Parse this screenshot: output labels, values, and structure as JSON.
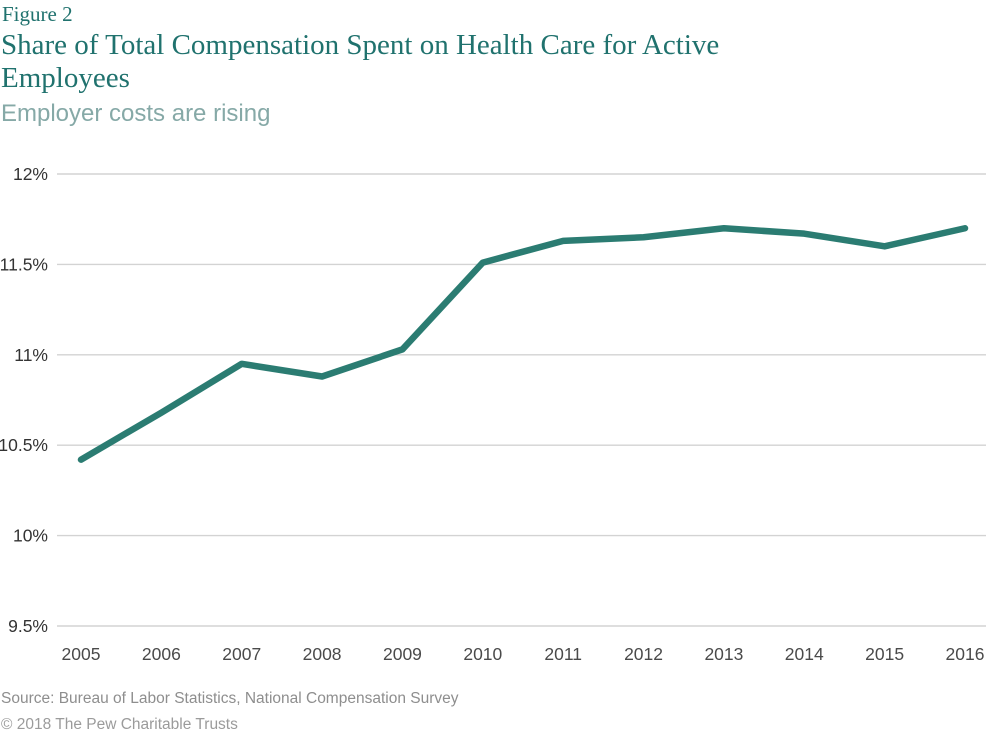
{
  "header": {
    "figure_label": "Figure 2",
    "title": "Share of Total Compensation Spent on Health Care for Active Employees",
    "title_lines": [
      "Share of Total Compensation Spent on Health Care for Active",
      "Employees"
    ],
    "subtitle": "Employer costs are rising"
  },
  "chart_data": {
    "type": "line",
    "title": "Share of Total Compensation Spent on Health Care for Active Employees",
    "subtitle": "Employer costs are rising",
    "categories": [
      "2005",
      "2006",
      "2007",
      "2008",
      "2009",
      "2010",
      "2011",
      "2012",
      "2013",
      "2014",
      "2015",
      "2016"
    ],
    "values": [
      10.42,
      10.68,
      10.95,
      10.88,
      11.03,
      11.51,
      11.63,
      11.65,
      11.7,
      11.67,
      11.6,
      11.7
    ],
    "xlabel": "",
    "ylabel": "",
    "ylim": [
      9.5,
      12
    ],
    "y_ticks": [
      9.5,
      10,
      10.5,
      11,
      11.5,
      12
    ],
    "y_tick_labels": [
      "9.5%",
      "10%",
      "10.5%",
      "11%",
      "11.5%",
      "12%"
    ],
    "grid": true,
    "legend": false,
    "line_color": "#2b7c72",
    "grid_color": "#d3d3d3"
  },
  "footer": {
    "source": "Source: Bureau of Labor Statistics, National Compensation Survey",
    "copyright": "© 2018 The Pew Charitable Trusts"
  },
  "colors": {
    "heading_teal": "#20726e",
    "subtitle_teal": "#86a9a7",
    "footer_gray": "#8e8e8e",
    "footer_gray_light": "#9b9b9b"
  }
}
